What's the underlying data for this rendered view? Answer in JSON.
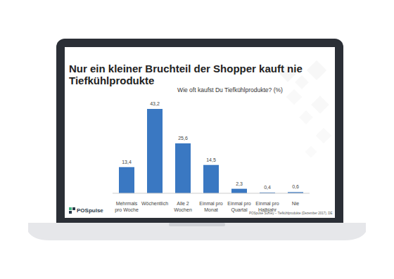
{
  "chart_data": {
    "type": "bar",
    "title": "Nur ein kleiner Bruchteil der Shopper kauft nie Tiefkühlprodukte",
    "subtitle": "Wie oft kaufst Du Tiefkühlprodukte? (%)",
    "categories": [
      "Mehrmals pro Woche",
      "Wöchentlich",
      "Alle 2 Wochen",
      "Einmal pro Monat",
      "Einmal pro Quartal",
      "Einmal pro Halbjahr",
      "Nie"
    ],
    "values": [
      13.4,
      43.2,
      25.6,
      14.5,
      2.3,
      0.4,
      0.6
    ],
    "value_labels": [
      "13,4",
      "43,2",
      "25,6",
      "14,5",
      "2,3",
      "0,4",
      "0,6"
    ],
    "color": "#3a78c2",
    "data_labels": true,
    "tick_labels": "x",
    "grid": false,
    "annotations": [
      "POSpulse",
      "POSpulse Survey – Tiefkühlprodukte (Dezember 2017), DE"
    ]
  }
}
